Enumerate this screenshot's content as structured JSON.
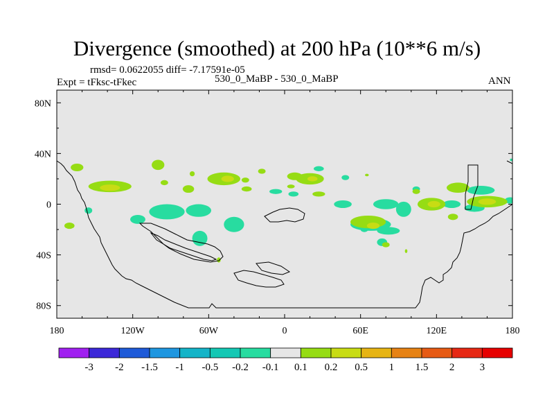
{
  "chart_data": {
    "type": "map",
    "title": "Divergence (smoothed) at 200 hPa (10**6 m/s)",
    "stats": "rmsd= 0.0622055 diff= -7.17591e-05",
    "left_label": "Expt = tFksc-tFkec",
    "center_label": "530_0_MaBP - 530_0_MaBP",
    "right_label": "ANN",
    "lon_range": [
      -180,
      180
    ],
    "lat_range": [
      -90,
      90
    ],
    "x_ticks": [
      {
        "value": -180,
        "label": "180"
      },
      {
        "value": -120,
        "label": "120W"
      },
      {
        "value": -60,
        "label": "60W"
      },
      {
        "value": 0,
        "label": "0"
      },
      {
        "value": 60,
        "label": "60E"
      },
      {
        "value": 120,
        "label": "120E"
      },
      {
        "value": 180,
        "label": "180"
      }
    ],
    "y_ticks": [
      {
        "value": 80,
        "label": "80N"
      },
      {
        "value": 40,
        "label": "40N"
      },
      {
        "value": 0,
        "label": "0"
      },
      {
        "value": -40,
        "label": "40S"
      },
      {
        "value": -80,
        "label": "80S"
      }
    ],
    "colorbar": {
      "labels": [
        "-3",
        "-2",
        "-1.5",
        "-1",
        "-0.5",
        "-0.2",
        "-0.1",
        "0.1",
        "0.2",
        "0.5",
        "1",
        "1.5",
        "2",
        "3"
      ],
      "colors": [
        "#a020f0",
        "#3c28d8",
        "#1e5ad8",
        "#1e96e0",
        "#14b4c8",
        "#14c8b4",
        "#28dca0",
        "#e6e6e6",
        "#96dc14",
        "#c8dc14",
        "#e6b414",
        "#e68214",
        "#e65a14",
        "#e62814",
        "#e60000"
      ]
    },
    "colors": {
      "background": "#e6e6e6",
      "neg": "#28dca0",
      "pos_light": "#96dc14",
      "pos_mid": "#c8dc14",
      "pos_high": "#e6b414",
      "outline": "#000000"
    },
    "contours": [
      {
        "lon": -164,
        "lat": 29,
        "rx": 5,
        "ry": 3,
        "level": "pos_light"
      },
      {
        "lon": -138,
        "lat": 14,
        "rx": 17,
        "ry": 4.5,
        "level": "pos_light"
      },
      {
        "lon": -138,
        "lat": 13,
        "rx": 8,
        "ry": 2.5,
        "level": "pos_mid"
      },
      {
        "lon": -100,
        "lat": 31,
        "rx": 5,
        "ry": 4,
        "level": "pos_light"
      },
      {
        "lon": -95,
        "lat": 17,
        "rx": 3,
        "ry": 2,
        "level": "pos_light"
      },
      {
        "lon": -73,
        "lat": 24,
        "rx": 2,
        "ry": 2,
        "level": "pos_light"
      },
      {
        "lon": -76,
        "lat": 12,
        "rx": 4.5,
        "ry": 3,
        "level": "pos_light"
      },
      {
        "lon": -170,
        "lat": -17,
        "rx": 4,
        "ry": 2.5,
        "level": "pos_light"
      },
      {
        "lon": -48,
        "lat": 20,
        "rx": 13,
        "ry": 5,
        "level": "pos_light"
      },
      {
        "lon": -45,
        "lat": 20,
        "rx": 5,
        "ry": 2.5,
        "level": "pos_mid"
      },
      {
        "lon": -31,
        "lat": 19,
        "rx": 3,
        "ry": 2,
        "level": "pos_light"
      },
      {
        "lon": -18,
        "lat": 26,
        "rx": 3,
        "ry": 2,
        "level": "pos_light"
      },
      {
        "lon": -30,
        "lat": 12,
        "rx": 4,
        "ry": 2,
        "level": "pos_light"
      },
      {
        "lon": 8,
        "lat": 22,
        "rx": 6,
        "ry": 3,
        "level": "pos_light"
      },
      {
        "lon": 20,
        "lat": 20,
        "rx": 11,
        "ry": 4.5,
        "level": "pos_light"
      },
      {
        "lon": 22,
        "lat": 20,
        "rx": 4,
        "ry": 2,
        "level": "pos_mid"
      },
      {
        "lon": 5,
        "lat": 14,
        "rx": 3,
        "ry": 1.5,
        "level": "pos_light"
      },
      {
        "lon": 27,
        "lat": 8,
        "rx": 5,
        "ry": 2,
        "level": "pos_light"
      },
      {
        "lon": 65,
        "lat": 23,
        "rx": 1.5,
        "ry": 1,
        "level": "pos_light"
      },
      {
        "lon": 66,
        "lat": -14,
        "rx": 14,
        "ry": 5,
        "level": "pos_light"
      },
      {
        "lon": 70,
        "lat": -17,
        "rx": 5,
        "ry": 2.5,
        "level": "pos_mid"
      },
      {
        "lon": 80,
        "lat": -32,
        "rx": 3,
        "ry": 2,
        "level": "pos_light"
      },
      {
        "lon": 104,
        "lat": 10,
        "rx": 3,
        "ry": 2,
        "level": "pos_light"
      },
      {
        "lon": 116,
        "lat": 0,
        "rx": 11,
        "ry": 5,
        "level": "pos_light"
      },
      {
        "lon": 118,
        "lat": 0,
        "rx": 5,
        "ry": 2.5,
        "level": "pos_mid"
      },
      {
        "lon": 133,
        "lat": -10,
        "rx": 4,
        "ry": 2.5,
        "level": "pos_light"
      },
      {
        "lon": 137,
        "lat": 13,
        "rx": 9,
        "ry": 4,
        "level": "pos_light"
      },
      {
        "lon": 160,
        "lat": 2,
        "rx": 16,
        "ry": 4.5,
        "level": "pos_light"
      },
      {
        "lon": 160,
        "lat": 2,
        "rx": 7,
        "ry": 2.5,
        "level": "pos_mid"
      },
      {
        "lon": 96,
        "lat": -37,
        "rx": 1,
        "ry": 1.5,
        "level": "pos_light"
      },
      {
        "lon": -52,
        "lat": -44,
        "rx": 1.5,
        "ry": 2,
        "level": "pos_light"
      },
      {
        "lon": -155,
        "lat": -5,
        "rx": 3,
        "ry": 2.5,
        "level": "neg"
      },
      {
        "lon": -116,
        "lat": -12,
        "rx": 6,
        "ry": 3.5,
        "level": "neg"
      },
      {
        "lon": -93,
        "lat": -6,
        "rx": 14,
        "ry": 6,
        "level": "neg"
      },
      {
        "lon": -68,
        "lat": -5,
        "rx": 10,
        "ry": 5,
        "level": "neg"
      },
      {
        "lon": -67,
        "lat": -27,
        "rx": 6,
        "ry": 6,
        "level": "neg"
      },
      {
        "lon": -40,
        "lat": -16,
        "rx": 8,
        "ry": 6,
        "level": "neg"
      },
      {
        "lon": -7,
        "lat": 10,
        "rx": 5,
        "ry": 2,
        "level": "neg"
      },
      {
        "lon": 7,
        "lat": 8,
        "rx": 4,
        "ry": 2,
        "level": "neg"
      },
      {
        "lon": 27,
        "lat": 28,
        "rx": 4,
        "ry": 2,
        "level": "neg"
      },
      {
        "lon": 48,
        "lat": 21,
        "rx": 3,
        "ry": 2,
        "level": "neg"
      },
      {
        "lon": 46,
        "lat": 0,
        "rx": 7,
        "ry": 3,
        "level": "neg"
      },
      {
        "lon": 80,
        "lat": 0,
        "rx": 10,
        "ry": 4,
        "level": "neg"
      },
      {
        "lon": 94,
        "lat": -4,
        "rx": 6,
        "ry": 6,
        "level": "neg"
      },
      {
        "lon": 68,
        "lat": -16,
        "rx": 16,
        "ry": 5,
        "level": "neg"
      },
      {
        "lon": 82,
        "lat": -21,
        "rx": 9,
        "ry": 3,
        "level": "neg"
      },
      {
        "lon": 77,
        "lat": -30,
        "rx": 4,
        "ry": 3,
        "level": "neg"
      },
      {
        "lon": 63,
        "lat": -20,
        "rx": 3,
        "ry": 2,
        "level": "neg"
      },
      {
        "lon": 104,
        "lat": 12,
        "rx": 3,
        "ry": 2,
        "level": "neg"
      },
      {
        "lon": 132,
        "lat": 0,
        "rx": 7,
        "ry": 3,
        "level": "neg"
      },
      {
        "lon": 155,
        "lat": 11,
        "rx": 11,
        "ry": 3.5,
        "level": "neg"
      },
      {
        "lon": 150,
        "lat": -3,
        "rx": 8,
        "ry": 3,
        "level": "neg"
      },
      {
        "lon": 178,
        "lat": 3,
        "rx": 4,
        "ry": 2.5,
        "level": "neg"
      },
      {
        "lon": 179,
        "lat": 35,
        "rx": 1,
        "ry": 1,
        "level": "neg"
      }
    ]
  }
}
